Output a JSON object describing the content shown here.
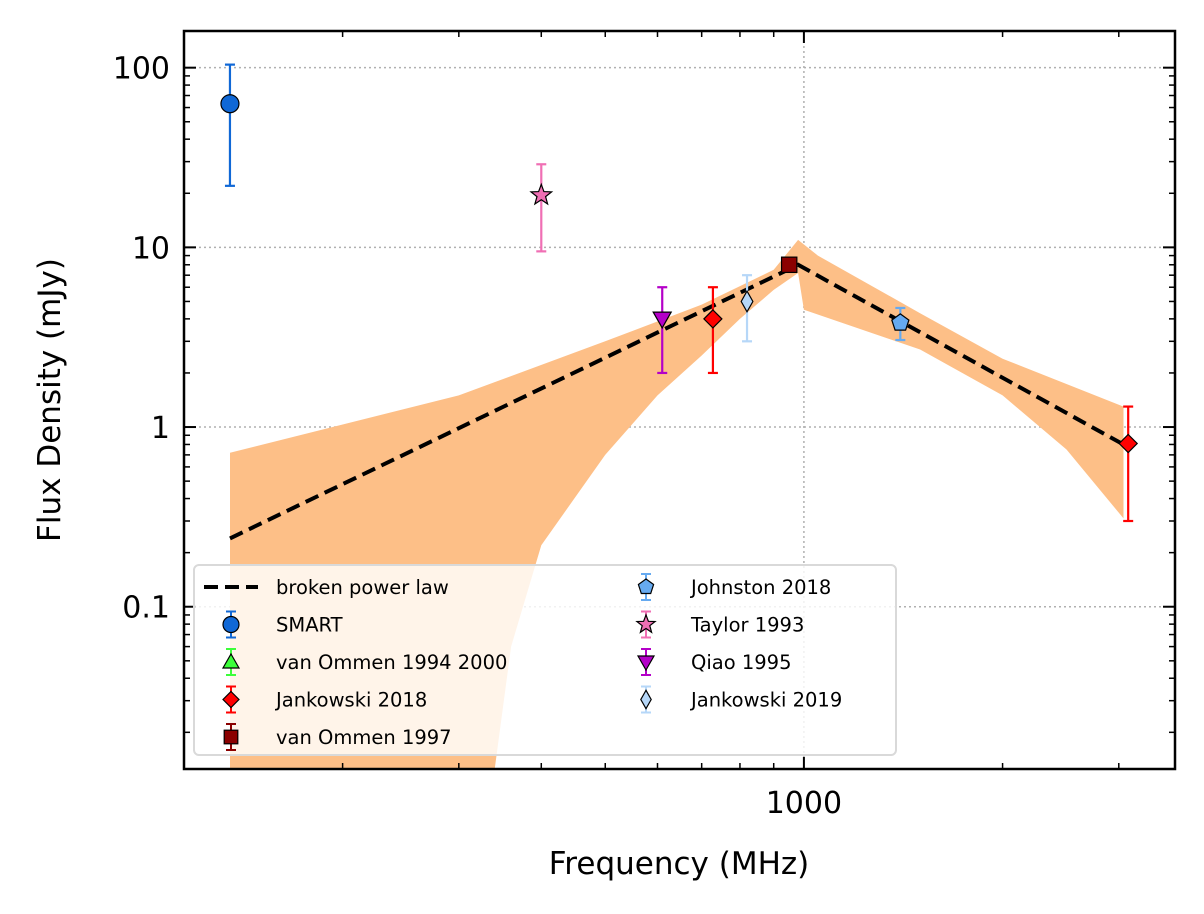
{
  "chart_data": {
    "type": "scatter",
    "title": "",
    "xlabel": "Frequency (MHz)",
    "ylabel": "Flux Density (mJy)",
    "xscale": "log",
    "yscale": "log",
    "xlim": [
      115,
      3650
    ],
    "ylim": [
      0.0125,
      160
    ],
    "grid": true,
    "legend_position": "lower-left",
    "x_ticks": [
      {
        "value": 1000,
        "label": "1000"
      }
    ],
    "y_ticks": [
      {
        "value": 100,
        "label": "100"
      },
      {
        "value": 10,
        "label": "10"
      },
      {
        "value": 1,
        "label": "1"
      },
      {
        "value": 0.1,
        "label": "0.1"
      }
    ],
    "model": {
      "name": "broken power law",
      "color": "#000000",
      "x": [
        135,
        980,
        3050
      ],
      "y": [
        0.24,
        8.0,
        0.8
      ]
    },
    "uncertainty_band": {
      "color": "#fdbf87",
      "lower": [
        [
          135,
          0.0125
        ],
        [
          340,
          0.0125
        ],
        [
          360,
          0.06
        ],
        [
          400,
          0.22
        ],
        [
          500,
          0.7
        ],
        [
          600,
          1.5
        ],
        [
          700,
          2.5
        ],
        [
          800,
          4.0
        ],
        [
          900,
          5.8
        ],
        [
          980,
          7.2
        ],
        [
          1000,
          4.5
        ],
        [
          1500,
          2.7
        ],
        [
          2000,
          1.5
        ],
        [
          2500,
          0.75
        ],
        [
          3050,
          0.31
        ]
      ],
      "upper": [
        [
          135,
          0.72
        ],
        [
          300,
          1.5
        ],
        [
          500,
          3.0
        ],
        [
          700,
          4.8
        ],
        [
          900,
          7.5
        ],
        [
          980,
          11.0
        ],
        [
          1050,
          9.0
        ],
        [
          1500,
          4.3
        ],
        [
          2000,
          2.4
        ],
        [
          3050,
          1.3
        ]
      ]
    },
    "series": [
      {
        "name": "SMART",
        "marker": "circle",
        "color": "#1068d6",
        "ecolor": "#1068d6",
        "points": [
          {
            "x": 135,
            "y": 63,
            "ylo": 22,
            "yhi": 104
          }
        ]
      },
      {
        "name": "van Ommen 1994 2000",
        "marker": "triangle-up",
        "color": "#3cfe3a",
        "ecolor": "#3cfe3a",
        "points": []
      },
      {
        "name": "Jankowski 2018",
        "marker": "diamond",
        "color": "#ff0000",
        "ecolor": "#ff0000",
        "points": [
          {
            "x": 728,
            "y": 4.0,
            "ylo": 2.0,
            "yhi": 6.0
          },
          {
            "x": 3100,
            "y": 0.81,
            "ylo": 0.3,
            "yhi": 1.3
          }
        ]
      },
      {
        "name": "van Ommen 1997",
        "marker": "square",
        "color": "#8b0000",
        "ecolor": "#8b0000",
        "points": [
          {
            "x": 950,
            "y": 8.0,
            "ylo": 7.5,
            "yhi": 8.5
          }
        ]
      },
      {
        "name": "Johnston 2018",
        "marker": "pentagon",
        "color": "#66aaf0",
        "ecolor": "#66aaf0",
        "points": [
          {
            "x": 1400,
            "y": 3.8,
            "ylo": 3.05,
            "yhi": 4.6
          }
        ]
      },
      {
        "name": "Taylor 1993",
        "marker": "star",
        "color": "#f06fb4",
        "ecolor": "#f06fb4",
        "points": [
          {
            "x": 400,
            "y": 19.5,
            "ylo": 9.5,
            "yhi": 29
          }
        ]
      },
      {
        "name": "Qiao 1995",
        "marker": "triangle-down",
        "color": "#b400c8",
        "ecolor": "#b400c8",
        "points": [
          {
            "x": 610,
            "y": 4.0,
            "ylo": 2.0,
            "yhi": 6.0
          }
        ]
      },
      {
        "name": "Jankowski 2019",
        "marker": "thin-diamond",
        "color": "#b6d7f8",
        "ecolor": "#b6d7f8",
        "points": [
          {
            "x": 820,
            "y": 5.0,
            "ylo": 3.0,
            "yhi": 7.0
          }
        ]
      }
    ]
  }
}
